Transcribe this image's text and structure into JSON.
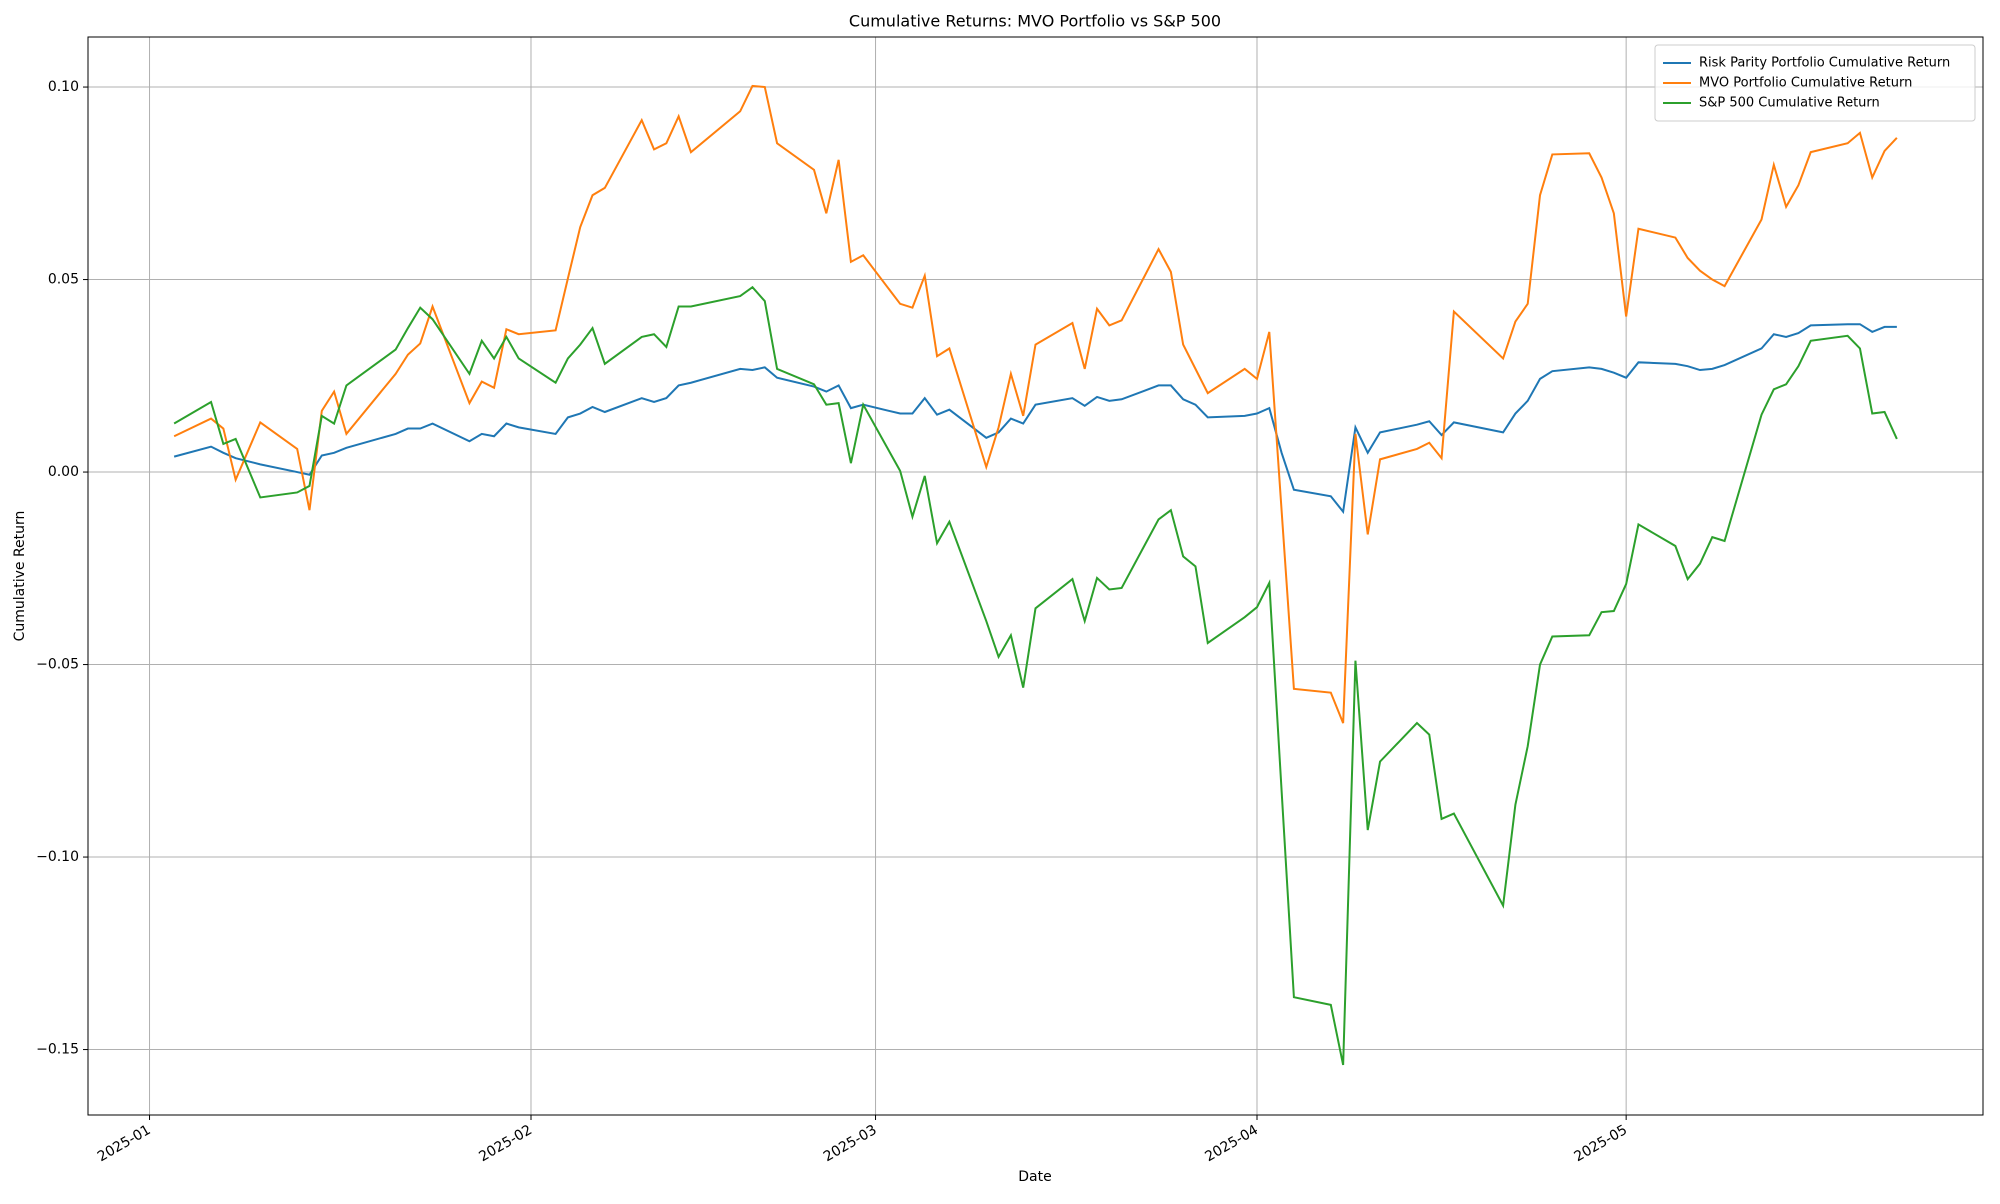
{
  "chart_data": {
    "type": "line",
    "title": "Cumulative Returns: MVO Portfolio vs S&P 500",
    "xlabel": "Date",
    "ylabel": "Cumulative Return",
    "x": [
      "2025-01-03",
      "2025-01-06",
      "2025-01-07",
      "2025-01-08",
      "2025-01-10",
      "2025-01-13",
      "2025-01-14",
      "2025-01-15",
      "2025-01-16",
      "2025-01-17",
      "2025-01-21",
      "2025-01-22",
      "2025-01-23",
      "2025-01-24",
      "2025-01-27",
      "2025-01-28",
      "2025-01-29",
      "2025-01-30",
      "2025-01-31",
      "2025-02-03",
      "2025-02-04",
      "2025-02-05",
      "2025-02-06",
      "2025-02-07",
      "2025-02-10",
      "2025-02-11",
      "2025-02-12",
      "2025-02-13",
      "2025-02-14",
      "2025-02-18",
      "2025-02-19",
      "2025-02-20",
      "2025-02-21",
      "2025-02-24",
      "2025-02-25",
      "2025-02-26",
      "2025-02-27",
      "2025-02-28",
      "2025-03-03",
      "2025-03-04",
      "2025-03-05",
      "2025-03-06",
      "2025-03-07",
      "2025-03-10",
      "2025-03-11",
      "2025-03-12",
      "2025-03-13",
      "2025-03-14",
      "2025-03-17",
      "2025-03-18",
      "2025-03-19",
      "2025-03-20",
      "2025-03-21",
      "2025-03-24",
      "2025-03-25",
      "2025-03-26",
      "2025-03-27",
      "2025-03-28",
      "2025-03-31",
      "2025-04-01",
      "2025-04-02",
      "2025-04-03",
      "2025-04-04",
      "2025-04-07",
      "2025-04-08",
      "2025-04-09",
      "2025-04-10",
      "2025-04-11",
      "2025-04-14",
      "2025-04-15",
      "2025-04-16",
      "2025-04-17",
      "2025-04-21",
      "2025-04-22",
      "2025-04-23",
      "2025-04-24",
      "2025-04-25",
      "2025-04-28",
      "2025-04-29",
      "2025-04-30",
      "2025-05-01",
      "2025-05-02",
      "2025-05-05",
      "2025-05-06",
      "2025-05-07",
      "2025-05-08",
      "2025-05-09",
      "2025-05-12",
      "2025-05-13",
      "2025-05-14",
      "2025-05-15",
      "2025-05-16",
      "2025-05-19",
      "2025-05-20",
      "2025-05-21",
      "2025-05-22",
      "2025-05-23"
    ],
    "series": [
      {
        "name": "Risk Parity Portfolio Cumulative Return",
        "color": "#1f77b4",
        "values": [
          0.004,
          0.0066,
          0.005,
          0.0036,
          0.002,
          0.0,
          -0.0007,
          0.0043,
          0.005,
          0.0063,
          0.0099,
          0.0113,
          0.0113,
          0.0126,
          0.008,
          0.0099,
          0.0093,
          0.0126,
          0.0116,
          0.0099,
          0.0142,
          0.0152,
          0.0169,
          0.0156,
          0.0192,
          0.0182,
          0.0192,
          0.0225,
          0.0232,
          0.0268,
          0.0265,
          0.0272,
          0.0245,
          0.0222,
          0.0209,
          0.0225,
          0.0166,
          0.0175,
          0.0152,
          0.0152,
          0.0192,
          0.0149,
          0.0162,
          0.0089,
          0.0103,
          0.0139,
          0.0126,
          0.0175,
          0.0192,
          0.0172,
          0.0195,
          0.0185,
          0.0189,
          0.0225,
          0.0225,
          0.0189,
          0.0175,
          0.0142,
          0.0146,
          0.0152,
          0.0166,
          0.005,
          -0.0046,
          -0.0063,
          -0.0103,
          0.0116,
          0.005,
          0.0103,
          0.0123,
          0.0132,
          0.0096,
          0.0129,
          0.0103,
          0.0152,
          0.0185,
          0.0242,
          0.0262,
          0.0272,
          0.0268,
          0.0258,
          0.0245,
          0.0285,
          0.0281,
          0.0275,
          0.0265,
          0.0268,
          0.0278,
          0.0321,
          0.0358,
          0.0351,
          0.0361,
          0.0381,
          0.0384,
          0.0384,
          0.0364,
          0.0377,
          0.0377
        ]
      },
      {
        "name": "MVO Portfolio Cumulative Return",
        "color": "#ff7f0e",
        "values": [
          0.0093,
          0.0139,
          0.0113,
          -0.002,
          0.0129,
          0.006,
          -0.0099,
          0.0159,
          0.0209,
          0.0099,
          0.0255,
          0.0305,
          0.0334,
          0.043,
          0.0179,
          0.0235,
          0.0219,
          0.0371,
          0.0358,
          0.0368,
          0.0503,
          0.0636,
          0.0719,
          0.0738,
          0.0914,
          0.0838,
          0.0854,
          0.0924,
          0.0831,
          0.0937,
          0.1003,
          0.1,
          0.0854,
          0.0785,
          0.0672,
          0.0811,
          0.0546,
          0.0563,
          0.0437,
          0.0427,
          0.051,
          0.0301,
          0.0321,
          0.0013,
          0.0116,
          0.0255,
          0.0146,
          0.0331,
          0.0387,
          0.0268,
          0.0424,
          0.0381,
          0.0394,
          0.0579,
          0.052,
          0.0331,
          0.0268,
          0.0205,
          0.0268,
          0.0242,
          0.0364,
          -0.01,
          -0.0563,
          -0.0573,
          -0.0652,
          0.0099,
          -0.0162,
          0.0033,
          0.006,
          0.0076,
          0.0036,
          0.0417,
          0.0295,
          0.0391,
          0.0437,
          0.0719,
          0.0825,
          0.0828,
          0.0765,
          0.0672,
          0.0404,
          0.0632,
          0.0609,
          0.0556,
          0.0523,
          0.05,
          0.0483,
          0.0656,
          0.0798,
          0.0689,
          0.0745,
          0.0831,
          0.0854,
          0.0881,
          0.0765,
          0.0834,
          0.0868
        ]
      },
      {
        "name": "S&P 500 Cumulative Return",
        "color": "#2ca02c",
        "values": [
          0.0126,
          0.0182,
          0.0073,
          0.0086,
          -0.0066,
          -0.0053,
          -0.0036,
          0.0146,
          0.0126,
          0.0225,
          0.0318,
          0.0374,
          0.0427,
          0.0397,
          0.0255,
          0.0341,
          0.0295,
          0.0351,
          0.0295,
          0.0232,
          0.0295,
          0.0331,
          0.0374,
          0.0281,
          0.0351,
          0.0358,
          0.0325,
          0.043,
          0.043,
          0.0457,
          0.048,
          0.0444,
          0.0268,
          0.0228,
          0.0175,
          0.0179,
          0.0023,
          0.0175,
          0.0003,
          -0.0116,
          -0.001,
          -0.0185,
          -0.0129,
          -0.0387,
          -0.048,
          -0.0424,
          -0.056,
          -0.0354,
          -0.0278,
          -0.0387,
          -0.0275,
          -0.0305,
          -0.0301,
          -0.0123,
          -0.0099,
          -0.0219,
          -0.0245,
          -0.0444,
          -0.0377,
          -0.0351,
          -0.0288,
          -0.0828,
          -0.1364,
          -0.1384,
          -0.154,
          -0.049,
          -0.093,
          -0.0752,
          -0.0652,
          -0.0682,
          -0.0901,
          -0.0887,
          -0.1126,
          -0.0864,
          -0.0712,
          -0.05,
          -0.0427,
          -0.0424,
          -0.0364,
          -0.0361,
          -0.0291,
          -0.0136,
          -0.0192,
          -0.0278,
          -0.0238,
          -0.0169,
          -0.0179,
          0.0149,
          0.0215,
          0.0228,
          0.0275,
          0.0341,
          0.0354,
          0.0321,
          0.0152,
          0.0156,
          0.0086
        ]
      }
    ],
    "xlim": [
      "2024-12-27",
      "2025-05-30"
    ],
    "xticks": [
      {
        "value": "2025-01-01",
        "label": "2025-01"
      },
      {
        "value": "2025-02-01",
        "label": "2025-02"
      },
      {
        "value": "2025-03-01",
        "label": "2025-03"
      },
      {
        "value": "2025-04-01",
        "label": "2025-04"
      },
      {
        "value": "2025-05-01",
        "label": "2025-05"
      }
    ],
    "ylim": [
      -0.167,
      0.113
    ],
    "yticks": [
      {
        "value": -0.15,
        "label": "−0.15"
      },
      {
        "value": -0.1,
        "label": "−0.10"
      },
      {
        "value": -0.05,
        "label": "−0.05"
      },
      {
        "value": 0,
        "label": "0.00"
      },
      0.05,
      {
        "value": 0.1,
        "label": "0.10"
      }
    ],
    "grid": true,
    "legend": "upper right"
  }
}
